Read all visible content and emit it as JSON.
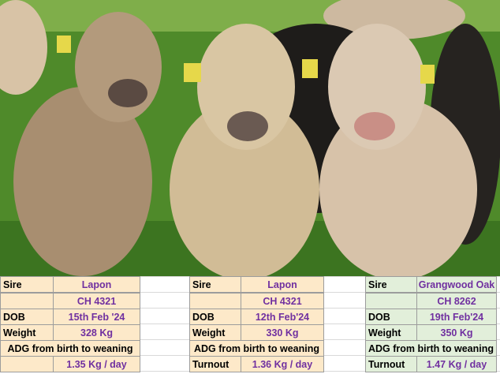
{
  "blocks": [
    {
      "sire_label": "Sire",
      "sire": "Lapon",
      "registration": "CH 4321",
      "dob_label": "DOB",
      "dob": "15th Feb '24",
      "weight_label": "Weight",
      "weight": "328 Kg",
      "adg_label": "ADG from birth to weaning",
      "adg": "1.35 Kg / day"
    },
    {
      "sire_label": "Sire",
      "sire": "Lapon",
      "registration": "CH 4321",
      "dob_label": "DOB",
      "dob": "12th  Feb'24",
      "weight_label": "Weight",
      "weight": "330 Kg",
      "adg_label": "ADG from birth to weaning",
      "final_label": "Turnout",
      "adg": "1.36 Kg / day"
    },
    {
      "sire_label": "Sire",
      "sire": "Grangwood Oak",
      "registration": "CH 8262",
      "dob_label": "DOB",
      "dob": "19th Feb'24",
      "weight_label": "Weight",
      "weight": "350 Kg",
      "adg_label": "ADG from birth to weaning",
      "final_label": "Turnout",
      "adg": "1.47 Kg / day"
    }
  ]
}
